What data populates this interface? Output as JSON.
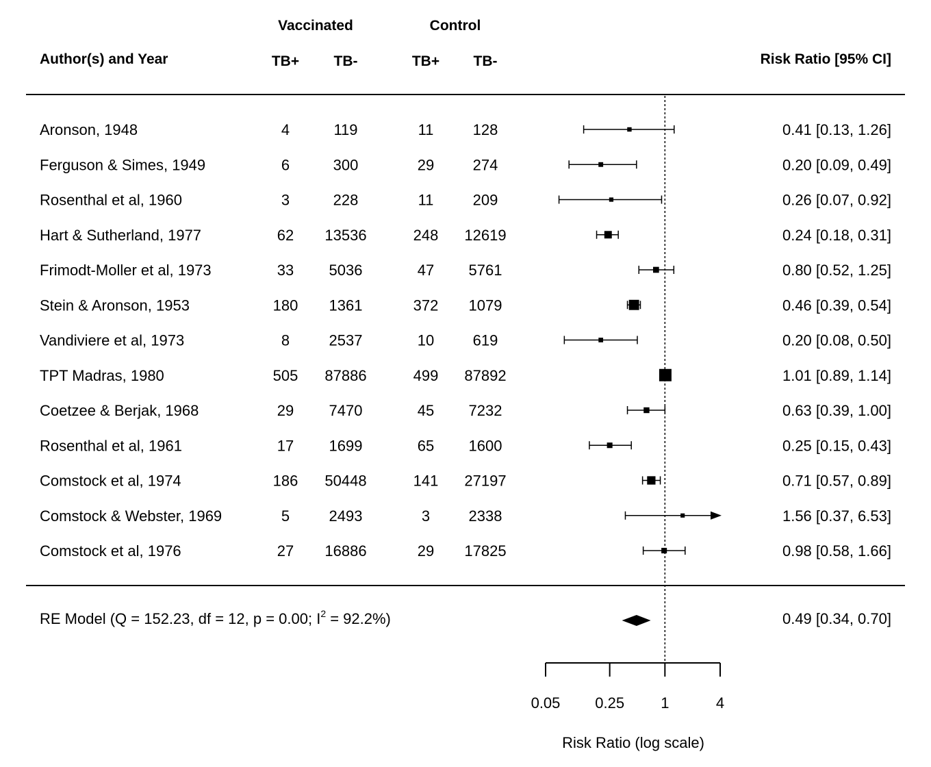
{
  "chart_data": {
    "type": "forest",
    "scale": "log",
    "x_label": "Risk Ratio (log scale)",
    "x_ticks": [
      0.05,
      0.25,
      1,
      4
    ],
    "x_tick_labels": [
      "0.05",
      "0.25",
      "1",
      "4"
    ],
    "x_range": [
      0.05,
      4
    ],
    "reference_line": 1,
    "headers": {
      "group_vaccinated": "Vaccinated",
      "group_control": "Control",
      "study": "Author(s) and Year",
      "vacc_pos": "TB+",
      "vacc_neg": "TB-",
      "ctrl_pos": "TB+",
      "ctrl_neg": "TB-",
      "effect": "Risk Ratio [95% CI]"
    },
    "studies": [
      {
        "label": "Aronson, 1948",
        "tpos": "4",
        "tneg": "119",
        "cpos": "11",
        "cneg": "128",
        "rr": 0.41,
        "lo": 0.13,
        "hi": 1.26,
        "text": "0.41 [0.13, 1.26]"
      },
      {
        "label": "Ferguson & Simes, 1949",
        "tpos": "6",
        "tneg": "300",
        "cpos": "29",
        "cneg": "274",
        "rr": 0.2,
        "lo": 0.09,
        "hi": 0.49,
        "text": "0.20 [0.09, 0.49]"
      },
      {
        "label": "Rosenthal et al, 1960",
        "tpos": "3",
        "tneg": "228",
        "cpos": "11",
        "cneg": "209",
        "rr": 0.26,
        "lo": 0.07,
        "hi": 0.92,
        "text": "0.26 [0.07, 0.92]"
      },
      {
        "label": "Hart & Sutherland, 1977",
        "tpos": "62",
        "tneg": "13536",
        "cpos": "248",
        "cneg": "12619",
        "rr": 0.24,
        "lo": 0.18,
        "hi": 0.31,
        "text": "0.24 [0.18, 0.31]"
      },
      {
        "label": "Frimodt-Moller et al, 1973",
        "tpos": "33",
        "tneg": "5036",
        "cpos": "47",
        "cneg": "5761",
        "rr": 0.8,
        "lo": 0.52,
        "hi": 1.25,
        "text": "0.80 [0.52, 1.25]"
      },
      {
        "label": "Stein & Aronson, 1953",
        "tpos": "180",
        "tneg": "1361",
        "cpos": "372",
        "cneg": "1079",
        "rr": 0.46,
        "lo": 0.39,
        "hi": 0.54,
        "text": "0.46 [0.39, 0.54]"
      },
      {
        "label": "Vandiviere et al, 1973",
        "tpos": "8",
        "tneg": "2537",
        "cpos": "10",
        "cneg": "619",
        "rr": 0.2,
        "lo": 0.08,
        "hi": 0.5,
        "text": "0.20 [0.08, 0.50]"
      },
      {
        "label": "TPT Madras, 1980",
        "tpos": "505",
        "tneg": "87886",
        "cpos": "499",
        "cneg": "87892",
        "rr": 1.01,
        "lo": 0.89,
        "hi": 1.14,
        "text": "1.01 [0.89, 1.14]"
      },
      {
        "label": "Coetzee & Berjak, 1968",
        "tpos": "29",
        "tneg": "7470",
        "cpos": "45",
        "cneg": "7232",
        "rr": 0.63,
        "lo": 0.39,
        "hi": 1.0,
        "text": "0.63 [0.39, 1.00]"
      },
      {
        "label": "Rosenthal et al, 1961",
        "tpos": "17",
        "tneg": "1699",
        "cpos": "65",
        "cneg": "1600",
        "rr": 0.25,
        "lo": 0.15,
        "hi": 0.43,
        "text": "0.25 [0.15, 0.43]"
      },
      {
        "label": "Comstock et al, 1974",
        "tpos": "186",
        "tneg": "50448",
        "cpos": "141",
        "cneg": "27197",
        "rr": 0.71,
        "lo": 0.57,
        "hi": 0.89,
        "text": "0.71 [0.57, 0.89]"
      },
      {
        "label": "Comstock & Webster, 1969",
        "tpos": "5",
        "tneg": "2493",
        "cpos": "3",
        "cneg": "2338",
        "rr": 1.56,
        "lo": 0.37,
        "hi": 6.53,
        "text": "1.56 [0.37, 6.53]"
      },
      {
        "label": "Comstock et al, 1976",
        "tpos": "27",
        "tneg": "16886",
        "cpos": "29",
        "cneg": "17825",
        "rr": 0.98,
        "lo": 0.58,
        "hi": 1.66,
        "text": "0.98 [0.58, 1.66]"
      }
    ],
    "summary": {
      "label_main": "RE Model (Q = 152.23, df = 12, p = 0.00; I",
      "label_sup": "2",
      "label_tail": " = 92.2%)",
      "rr": 0.49,
      "lo": 0.34,
      "hi": 0.7,
      "text": "0.49 [0.34, 0.70]"
    }
  }
}
